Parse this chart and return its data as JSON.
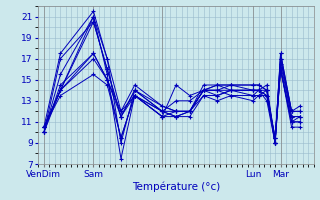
{
  "xlabel": "Température (°c)",
  "bg_color": "#cce8ec",
  "line_color": "#0000bb",
  "grid_color": "#99bbcc",
  "yticks": [
    7,
    9,
    11,
    13,
    15,
    17,
    19,
    21
  ],
  "ylim": [
    7,
    22
  ],
  "xlim": [
    0,
    100
  ],
  "xtick_positions": [
    2,
    20,
    45,
    78,
    88
  ],
  "xtick_labels": [
    "VenDim",
    "Sam",
    "",
    "Lun",
    "Mar"
  ],
  "series": [
    {
      "x": [
        2,
        8,
        20,
        25,
        30,
        35,
        45,
        50,
        55,
        60,
        65,
        70,
        78,
        80,
        83,
        86,
        88,
        92,
        95
      ],
      "y": [
        10.5,
        17.5,
        21.5,
        17.0,
        12.0,
        14.5,
        12.5,
        12.0,
        12.0,
        14.0,
        13.5,
        14.0,
        14.0,
        14.0,
        13.5,
        9.5,
        17.0,
        12.0,
        12.5
      ]
    },
    {
      "x": [
        2,
        8,
        20,
        25,
        30,
        35,
        45,
        50,
        55,
        60,
        65,
        70,
        78,
        80,
        83,
        86,
        88,
        92,
        95
      ],
      "y": [
        10.0,
        17.0,
        20.5,
        16.0,
        11.5,
        14.0,
        12.0,
        11.5,
        11.5,
        13.5,
        13.0,
        13.5,
        13.5,
        13.5,
        14.0,
        9.0,
        16.0,
        11.0,
        11.5
      ]
    },
    {
      "x": [
        2,
        8,
        20,
        25,
        30,
        35,
        45,
        50,
        55,
        60,
        65,
        70,
        78,
        80,
        83,
        86,
        88,
        92,
        95
      ],
      "y": [
        10.0,
        15.5,
        21.0,
        15.5,
        7.5,
        13.5,
        12.0,
        11.5,
        12.0,
        13.5,
        13.5,
        14.0,
        14.0,
        14.0,
        13.5,
        9.0,
        17.5,
        12.0,
        12.0
      ]
    },
    {
      "x": [
        2,
        8,
        20,
        25,
        30,
        35,
        45,
        50,
        55,
        60,
        65,
        70,
        78,
        80,
        83,
        86,
        88,
        92,
        95
      ],
      "y": [
        10.0,
        14.5,
        17.5,
        15.0,
        9.5,
        13.5,
        11.5,
        12.0,
        12.0,
        14.0,
        14.0,
        14.5,
        14.5,
        14.5,
        14.0,
        9.5,
        16.0,
        11.0,
        11.0
      ]
    },
    {
      "x": [
        2,
        8,
        20,
        25,
        30,
        35,
        45,
        50,
        55,
        60,
        65,
        70,
        78,
        80,
        83,
        86,
        88,
        92,
        95
      ],
      "y": [
        10.0,
        14.0,
        17.0,
        15.0,
        11.5,
        13.5,
        11.5,
        11.5,
        12.0,
        14.0,
        14.5,
        14.5,
        14.5,
        14.5,
        14.0,
        9.0,
        16.5,
        11.5,
        11.5
      ]
    },
    {
      "x": [
        2,
        8,
        20,
        25,
        30,
        35,
        45,
        50,
        55,
        60,
        65,
        70,
        78,
        80,
        83,
        86,
        88,
        92,
        95
      ],
      "y": [
        10.5,
        14.0,
        17.5,
        15.0,
        12.0,
        13.5,
        12.0,
        12.0,
        12.0,
        14.0,
        14.5,
        14.5,
        14.0,
        14.0,
        14.5,
        9.0,
        16.0,
        11.0,
        11.0
      ]
    },
    {
      "x": [
        2,
        8,
        20,
        25,
        30,
        35,
        45,
        50,
        55,
        60,
        65,
        70,
        78,
        80,
        83,
        86,
        88,
        92,
        95
      ],
      "y": [
        10.5,
        14.0,
        20.5,
        16.0,
        11.5,
        14.0,
        12.5,
        12.0,
        12.0,
        14.5,
        14.5,
        14.0,
        14.0,
        14.0,
        14.0,
        9.0,
        17.0,
        11.5,
        11.5
      ]
    },
    {
      "x": [
        2,
        8,
        20,
        25,
        30,
        35,
        45,
        50,
        55,
        60,
        65,
        70,
        78,
        80,
        83,
        86,
        88,
        92,
        95
      ],
      "y": [
        10.5,
        14.0,
        21.0,
        17.0,
        9.0,
        14.0,
        12.0,
        13.0,
        13.0,
        14.0,
        14.0,
        14.0,
        13.5,
        14.0,
        13.0,
        9.0,
        17.5,
        12.0,
        12.0
      ]
    },
    {
      "x": [
        2,
        8,
        20,
        25,
        30,
        35,
        45,
        50,
        55,
        60,
        65,
        70,
        78,
        80,
        83,
        86,
        88,
        92,
        95
      ],
      "y": [
        10.5,
        13.5,
        15.5,
        14.5,
        9.5,
        13.5,
        11.5,
        14.5,
        13.5,
        14.0,
        14.0,
        13.5,
        13.0,
        13.5,
        13.5,
        9.5,
        16.0,
        10.5,
        10.5
      ]
    }
  ]
}
